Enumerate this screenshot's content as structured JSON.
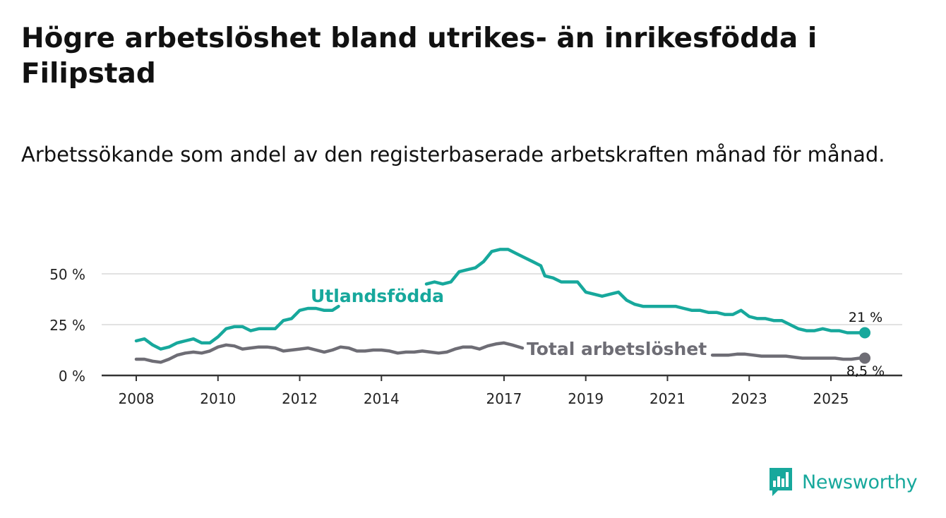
{
  "title": "Högre arbetslöshet bland utrikes- än inrikesfödda i Filipstad",
  "subtitle": "Arbetssökande som andel av den registerbaserade arbetskraften månad för månad.",
  "brand": {
    "name": "Newsworthy",
    "icon": "bar-chart-logo-icon"
  },
  "colors": {
    "utlandsfodda": "#17a89c",
    "total": "#6e6d75",
    "grid": "#d9d9d9",
    "axis": "#333333"
  },
  "chart_data": {
    "type": "line",
    "title": "Högre arbetslöshet bland utrikes- än inrikesfödda i Filipstad",
    "xlabel": "",
    "ylabel": "",
    "xlim": [
      2007.9,
      2026.3
    ],
    "ylim": [
      0,
      60
    ],
    "x_ticks": [
      2008,
      2010,
      2012,
      2014,
      2017,
      2019,
      2021,
      2023,
      2025
    ],
    "x_tick_labels": [
      "2008",
      "2010",
      "2012",
      "2014",
      "2017",
      "2019",
      "2021",
      "2023",
      "2025"
    ],
    "y_ticks": [
      0,
      25,
      50
    ],
    "y_tick_labels": [
      "0 %",
      "25 %",
      "50 %"
    ],
    "grid": true,
    "series": [
      {
        "name": "Utlandsfödda",
        "label": "Utlandsfödda",
        "end_label": "21 %",
        "color": "#17a89c",
        "segments": [
          [
            [
              2008.0,
              17
            ],
            [
              2008.2,
              18
            ],
            [
              2008.4,
              15
            ],
            [
              2008.6,
              13
            ],
            [
              2008.8,
              14
            ],
            [
              2009.0,
              16
            ],
            [
              2009.2,
              17
            ],
            [
              2009.4,
              18
            ],
            [
              2009.6,
              16
            ],
            [
              2009.8,
              16
            ],
            [
              2010.0,
              19
            ],
            [
              2010.2,
              23
            ],
            [
              2010.4,
              24
            ],
            [
              2010.6,
              24
            ],
            [
              2010.8,
              22
            ],
            [
              2011.0,
              23
            ],
            [
              2011.2,
              23
            ],
            [
              2011.4,
              23
            ],
            [
              2011.6,
              27
            ],
            [
              2011.8,
              28
            ],
            [
              2012.0,
              32
            ],
            [
              2012.2,
              33
            ],
            [
              2012.4,
              33
            ],
            [
              2012.6,
              32
            ],
            [
              2012.8,
              32
            ],
            [
              2012.95,
              34
            ]
          ],
          [
            [
              2015.1,
              45
            ],
            [
              2015.3,
              46
            ],
            [
              2015.5,
              45
            ],
            [
              2015.7,
              46
            ],
            [
              2015.9,
              51
            ],
            [
              2016.1,
              52
            ],
            [
              2016.3,
              53
            ],
            [
              2016.5,
              56
            ],
            [
              2016.7,
              61
            ],
            [
              2016.9,
              62
            ],
            [
              2017.1,
              62
            ],
            [
              2017.3,
              60
            ],
            [
              2017.5,
              58
            ],
            [
              2017.7,
              56
            ],
            [
              2017.9,
              54
            ],
            [
              2018.0,
              49
            ],
            [
              2018.2,
              48
            ],
            [
              2018.4,
              46
            ],
            [
              2018.6,
              46
            ],
            [
              2018.8,
              46
            ],
            [
              2019.0,
              41
            ],
            [
              2019.2,
              40
            ],
            [
              2019.4,
              39
            ],
            [
              2019.6,
              40
            ],
            [
              2019.8,
              41
            ],
            [
              2020.0,
              37
            ],
            [
              2020.2,
              35
            ],
            [
              2020.4,
              34
            ],
            [
              2020.6,
              34
            ],
            [
              2020.8,
              34
            ],
            [
              2021.0,
              34
            ],
            [
              2021.2,
              34
            ],
            [
              2021.4,
              33
            ],
            [
              2021.6,
              32
            ],
            [
              2021.8,
              32
            ],
            [
              2022.0,
              31
            ],
            [
              2022.2,
              31
            ],
            [
              2022.4,
              30
            ],
            [
              2022.6,
              30
            ],
            [
              2022.8,
              32
            ],
            [
              2023.0,
              29
            ],
            [
              2023.2,
              28
            ],
            [
              2023.4,
              28
            ],
            [
              2023.6,
              27
            ],
            [
              2023.8,
              27
            ],
            [
              2024.0,
              25
            ],
            [
              2024.2,
              23
            ],
            [
              2024.4,
              22
            ],
            [
              2024.6,
              22
            ],
            [
              2024.8,
              23
            ],
            [
              2025.0,
              22
            ],
            [
              2025.2,
              22
            ],
            [
              2025.4,
              21
            ],
            [
              2025.6,
              21
            ],
            [
              2025.83,
              21
            ]
          ]
        ]
      },
      {
        "name": "Total arbetslöshet",
        "label": "Total arbetslöshet",
        "end_label": "8,5 %",
        "color": "#6e6d75",
        "segments": [
          [
            [
              2008.0,
              8
            ],
            [
              2008.2,
              8
            ],
            [
              2008.4,
              7
            ],
            [
              2008.6,
              6.5
            ],
            [
              2008.8,
              8
            ],
            [
              2009.0,
              10
            ],
            [
              2009.2,
              11
            ],
            [
              2009.4,
              11.5
            ],
            [
              2009.6,
              11
            ],
            [
              2009.8,
              12
            ],
            [
              2010.0,
              14
            ],
            [
              2010.2,
              15
            ],
            [
              2010.4,
              14.5
            ],
            [
              2010.6,
              13
            ],
            [
              2010.8,
              13.5
            ],
            [
              2011.0,
              14
            ],
            [
              2011.2,
              14
            ],
            [
              2011.4,
              13.5
            ],
            [
              2011.6,
              12
            ],
            [
              2011.8,
              12.5
            ],
            [
              2012.0,
              13
            ],
            [
              2012.2,
              13.5
            ],
            [
              2012.4,
              12.5
            ],
            [
              2012.6,
              11.5
            ],
            [
              2012.8,
              12.5
            ],
            [
              2013.0,
              14
            ],
            [
              2013.2,
              13.5
            ],
            [
              2013.4,
              12
            ],
            [
              2013.6,
              12
            ],
            [
              2013.8,
              12.5
            ],
            [
              2014.0,
              12.5
            ],
            [
              2014.2,
              12
            ],
            [
              2014.4,
              11
            ],
            [
              2014.6,
              11.5
            ],
            [
              2014.8,
              11.5
            ],
            [
              2015.0,
              12
            ],
            [
              2015.2,
              11.5
            ],
            [
              2015.4,
              11
            ],
            [
              2015.6,
              11.5
            ],
            [
              2015.8,
              13
            ],
            [
              2016.0,
              14
            ],
            [
              2016.2,
              14
            ],
            [
              2016.4,
              13
            ],
            [
              2016.6,
              14.5
            ],
            [
              2016.8,
              15.5
            ],
            [
              2017.0,
              16
            ],
            [
              2017.2,
              15
            ],
            [
              2017.45,
              13.5
            ]
          ],
          [
            [
              2022.1,
              10
            ],
            [
              2022.3,
              10
            ],
            [
              2022.5,
              10
            ],
            [
              2022.7,
              10.5
            ],
            [
              2022.9,
              10.5
            ],
            [
              2023.1,
              10
            ],
            [
              2023.3,
              9.5
            ],
            [
              2023.5,
              9.5
            ],
            [
              2023.7,
              9.5
            ],
            [
              2023.9,
              9.5
            ],
            [
              2024.1,
              9
            ],
            [
              2024.3,
              8.5
            ],
            [
              2024.5,
              8.5
            ],
            [
              2024.7,
              8.5
            ],
            [
              2024.9,
              8.5
            ],
            [
              2025.1,
              8.5
            ],
            [
              2025.3,
              8
            ],
            [
              2025.5,
              8
            ],
            [
              2025.7,
              8.5
            ],
            [
              2025.83,
              8.5
            ]
          ]
        ]
      }
    ]
  }
}
